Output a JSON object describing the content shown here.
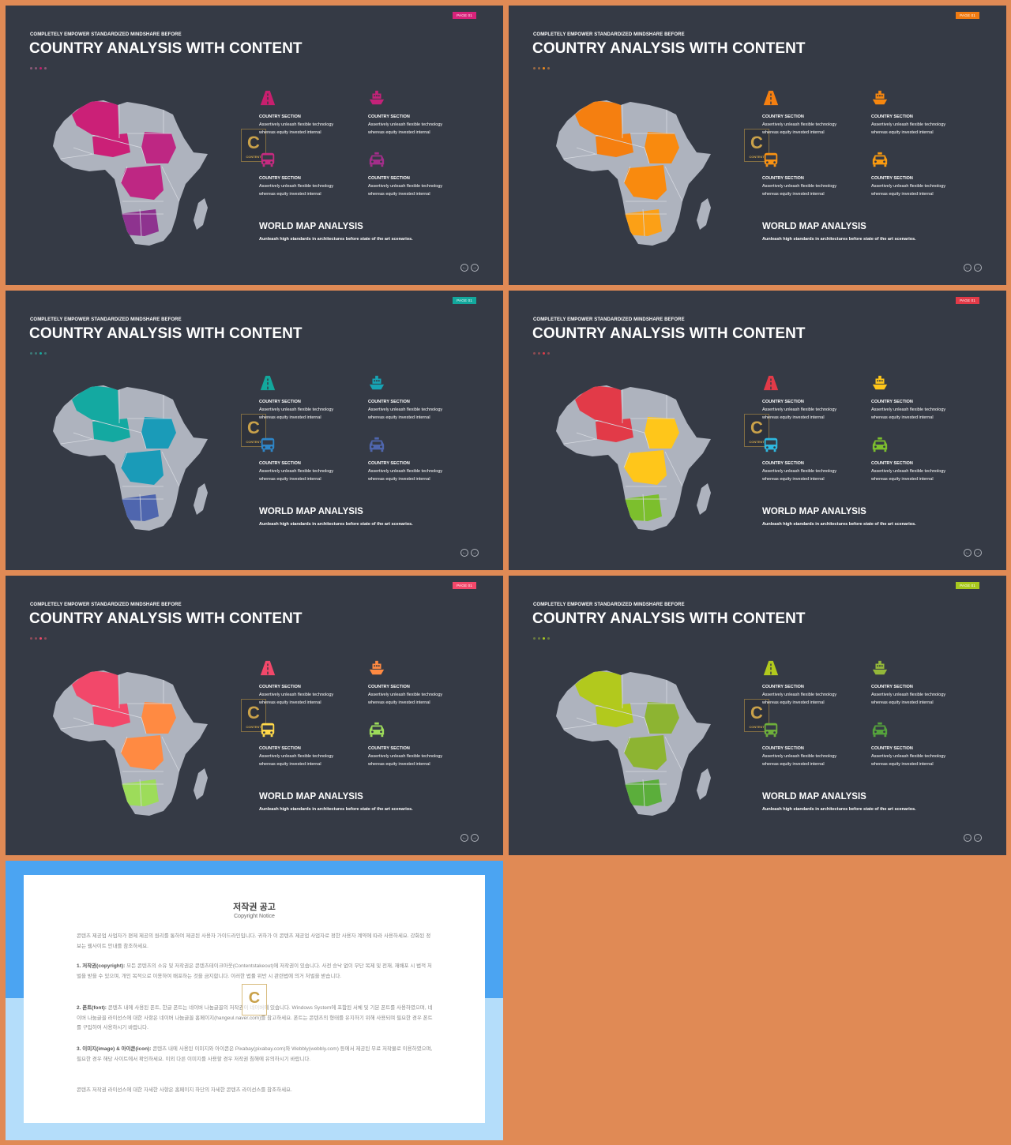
{
  "slides": [
    {
      "tag": "PAGE 01",
      "subtitle": "COMPLETELY  EMPOWER  STANDARDIZED  MINDSHARE  BEFORE",
      "title": "COUNTRY ANALYSIS WITH CONTENT",
      "colors": {
        "tag": "#D6237A",
        "dots": [
          "#8b5a78",
          "#8b5a78",
          "#C81F6E",
          "#8b5a78"
        ],
        "north": "#CB2077",
        "central": "#BE2783",
        "south": "#8E338F",
        "icons": [
          "#C81F6E",
          "#C42279",
          "#C72A80",
          "#A32E8A"
        ]
      },
      "features": [
        {
          "heading": "COUNTRY SECTION",
          "line1": "Assertively unleash flexible technology",
          "line2": "whereas equity invested internal"
        },
        {
          "heading": "COUNTRY SECTION",
          "line1": "Assertively unleash flexible technology",
          "line2": "whereas equity invested internal"
        },
        {
          "heading": "COUNTRY SECTION",
          "line1": "Assertively unleash flexible technology",
          "line2": "whereas equity invested internal"
        },
        {
          "heading": "COUNTRY SECTION",
          "line1": "Assertively unleash flexible technology",
          "line2": "whereas equity invested internal"
        }
      ],
      "map_title": "WORLD MAP ANALYSIS",
      "map_subtitle": "Aunleash  high standards in architectures before state of the art scenarios."
    },
    {
      "tag": "PAGE 01",
      "subtitle": "COMPLETELY  EMPOWER  STANDARDIZED  MINDSHARE  BEFORE",
      "title": "COUNTRY ANALYSIS WITH CONTENT",
      "colors": {
        "tag": "#F07B12",
        "dots": [
          "#9a6a45",
          "#9a6a45",
          "#F08A1A",
          "#9a6a45"
        ],
        "north": "#F57F10",
        "central": "#F98A0E",
        "south": "#FCA016",
        "icons": [
          "#F57F10",
          "#F7870F",
          "#F89213",
          "#F99A10"
        ]
      },
      "features": [
        {
          "heading": "COUNTRY SECTION",
          "line1": "Assertively unleash flexible technology",
          "line2": "whereas equity invested internal"
        },
        {
          "heading": "COUNTRY SECTION",
          "line1": "Assertively unleash flexible technology",
          "line2": "whereas equity invested internal"
        },
        {
          "heading": "COUNTRY SECTION",
          "line1": "Assertively unleash flexible technology",
          "line2": "whereas equity invested internal"
        },
        {
          "heading": "COUNTRY SECTION",
          "line1": "Assertively unleash flexible technology",
          "line2": "whereas equity invested internal"
        }
      ],
      "map_title": "WORLD MAP ANALYSIS",
      "map_subtitle": "Aunleash  high standards in architectures before state of the art scenarios."
    },
    {
      "tag": "PAGE 01",
      "subtitle": "COMPLETELY  EMPOWER  STANDARDIZED  MINDSHARE  BEFORE",
      "title": "COUNTRY ANALYSIS WITH CONTENT",
      "colors": {
        "tag": "#12A79C",
        "dots": [
          "#3d7a78",
          "#3d7a78",
          "#16ABA0",
          "#3d7a78"
        ],
        "north": "#14A9A1",
        "central": "#1A9BB8",
        "south": "#4F66AE",
        "icons": [
          "#13A79C",
          "#17A3B4",
          "#2E86C8",
          "#4F66AE"
        ]
      },
      "features": [
        {
          "heading": "COUNTRY SECTION",
          "line1": "Assertively unleash flexible technology",
          "line2": "whereas equity invested internal"
        },
        {
          "heading": "COUNTRY SECTION",
          "line1": "Assertively unleash flexible technology",
          "line2": "whereas equity invested internal"
        },
        {
          "heading": "COUNTRY SECTION",
          "line1": "Assertively unleash flexible technology",
          "line2": "whereas equity invested internal"
        },
        {
          "heading": "COUNTRY SECTION",
          "line1": "Assertively unleash flexible technology",
          "line2": "whereas equity invested internal"
        }
      ],
      "map_title": "WORLD MAP ANALYSIS",
      "map_subtitle": "Aunleash  high standards in architectures before state of the art scenarios."
    },
    {
      "tag": "PAGE 01",
      "subtitle": "COMPLETELY  EMPOWER  STANDARDIZED  MINDSHARE  BEFORE",
      "title": "COUNTRY ANALYSIS WITH CONTENT",
      "colors": {
        "tag": "#E23A48",
        "dots": [
          "#8e4c52",
          "#8e4c52",
          "#E23A48",
          "#8e4c52"
        ],
        "north": "#E23A48",
        "central": "#FFC61A",
        "south": "#7CBF2D",
        "icons": [
          "#E23A48",
          "#FFC61A",
          "#2EB8E0",
          "#7CBF2D"
        ]
      },
      "features": [
        {
          "heading": "COUNTRY SECTION",
          "line1": "Assertively unleash flexible technology",
          "line2": "whereas equity invested internal"
        },
        {
          "heading": "COUNTRY SECTION",
          "line1": "Assertively unleash flexible technology",
          "line2": "whereas equity invested internal"
        },
        {
          "heading": "COUNTRY SECTION",
          "line1": "Assertively unleash flexible technology",
          "line2": "whereas equity invested internal"
        },
        {
          "heading": "COUNTRY SECTION",
          "line1": "Assertively unleash flexible technology",
          "line2": "whereas equity invested internal"
        }
      ],
      "map_title": "WORLD MAP ANALYSIS",
      "map_subtitle": "Aunleash  high standards in architectures before state of the art scenarios."
    },
    {
      "tag": "PAGE 01",
      "subtitle": "COMPLETELY  EMPOWER  STANDARDIZED  MINDSHARE  BEFORE",
      "title": "COUNTRY ANALYSIS WITH CONTENT",
      "colors": {
        "tag": "#F2486A",
        "dots": [
          "#8e4c5a",
          "#8e4c5a",
          "#F2486A",
          "#8e4c5a"
        ],
        "north": "#F2486A",
        "central": "#FF8A42",
        "south": "#9DDC5A",
        "icons": [
          "#F2486A",
          "#FF8A42",
          "#FFD84A",
          "#9DDC5A"
        ]
      },
      "features": [
        {
          "heading": "COUNTRY SECTION",
          "line1": "Assertively unleash flexible technology",
          "line2": "whereas equity invested internal"
        },
        {
          "heading": "COUNTRY SECTION",
          "line1": "Assertively unleash flexible technology",
          "line2": "whereas equity invested internal"
        },
        {
          "heading": "COUNTRY SECTION",
          "line1": "Assertively unleash flexible technology",
          "line2": "whereas equity invested internal"
        },
        {
          "heading": "COUNTRY SECTION",
          "line1": "Assertively unleash flexible technology",
          "line2": "whereas equity invested internal"
        }
      ],
      "map_title": "WORLD MAP ANALYSIS",
      "map_subtitle": "Aunleash  high standards in architectures before state of the art scenarios."
    },
    {
      "tag": "PAGE 01",
      "subtitle": "COMPLETELY  EMPOWER  STANDARDIZED  MINDSHARE  BEFORE",
      "title": "COUNTRY ANALYSIS WITH CONTENT",
      "colors": {
        "tag": "#A8C81E",
        "dots": [
          "#6a7a40",
          "#6a7a40",
          "#A8C81E",
          "#6a7a40"
        ],
        "north": "#B2C91D",
        "central": "#8DB432",
        "south": "#5BAE3B",
        "icons": [
          "#B2C91D",
          "#94B83A",
          "#6EAF3B",
          "#55A23C"
        ]
      },
      "features": [
        {
          "heading": "COUNTRY SECTION",
          "line1": "Assertively unleash flexible technology",
          "line2": "whereas equity invested internal"
        },
        {
          "heading": "COUNTRY SECTION",
          "line1": "Assertively unleash flexible technology",
          "line2": "whereas equity invested internal"
        },
        {
          "heading": "COUNTRY SECTION",
          "line1": "Assertively unleash flexible technology",
          "line2": "whereas equity invested internal"
        },
        {
          "heading": "COUNTRY SECTION",
          "line1": "Assertively unleash flexible technology",
          "line2": "whereas equity invested internal"
        }
      ],
      "map_title": "WORLD MAP ANALYSIS",
      "map_subtitle": "Aunleash  high standards in architectures before state of the art scenarios."
    }
  ],
  "icons": [
    "road-icon",
    "ship-icon",
    "bus-icon",
    "taxi-icon"
  ],
  "watermark": {
    "letter": "C",
    "label": "CONTENT"
  },
  "nav": {
    "prev": "←",
    "next": "→"
  },
  "copyright": {
    "title": "저작권 공고",
    "subtitle": "Copyright Notice",
    "intro": "콘텐츠 제공업 사업자가 편제 제공의 원리를 통하여 제공된 사용자 가이드라인입니다. 귀하가 이 콘텐츠 제공업 사업자로 정한 사용자 계약에 따라 사용하세요. 강화된 정보는 웹사이트 안내를 참조하세요.",
    "p1_label": "1. 저작권(copyright):",
    "p1": " 모든 콘텐츠의 소유 및 저작권은 콘텐츠테이크아웃(Contentstakeout)에 저작권이 있습니다. 사전 승낙 없이 무단 복제 및 전재, 재배포 시 법적 처벌을 받을 수 있으며, 개인 목적으로 이용하여 배포하는 것을 금지합니다. 이러한 법률 위반 시 관련법에 의거 처벌을 받습니다.",
    "p2_label": "2. 폰트(font):",
    "p2": " 콘텐츠 내에 사용된 폰트, 한글 폰트는 네이버 나눔글꼴의 저작권이 네이버에 있습니다. Windows System에 포함된 서체 및 기본 폰트를 사용하였으며, 네이버 나눔글꼴 라이선스에 대한 사항은 네이버 나눔글꼴 홈페이지(hangeul.naver.com)를 참고하세요. 폰트는 콘텐츠의 형태를 유지하기 위해 사용되며 필요한 경우 폰트를 구입하여 사용하시기 바랍니다.",
    "p3_label": "3. 이미지(image) & 아이콘(icon):",
    "p3": " 콘텐츠 내에 사용된 이미지와 아이콘은 Pixabay(pixabay.com)와 Webbly(webbly.com) 등에서 제공된 무료 저작물로 이용하였으며, 필요한 경우 해당 사이트에서 확인하세요. 이외 다른 이미지를 사용할 경우 저작권 침해에 유의하시기 바랍니다.",
    "outro": "콘텐츠 저작권 라이선스에 대한 자세한 사항은 홈페이지 하단의 자세한 콘텐츠 라이선스를 참조하세요."
  }
}
